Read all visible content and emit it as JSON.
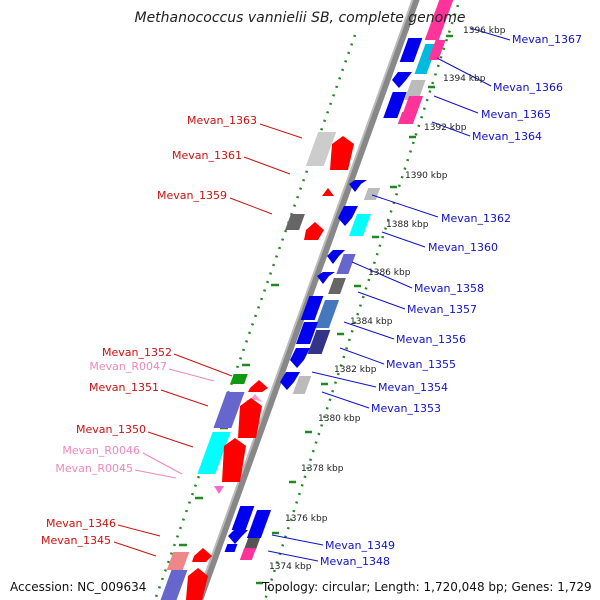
{
  "title": "Methanococcus vannielii SB, complete genome",
  "footer": {
    "accession": "Accession: NC_009634",
    "stats": "Topology: circular; Length: 1,720,048 bp; Genes: 1,729"
  },
  "colors": {
    "plus_strand_label": "#1111cc",
    "minus_strand_label": "#cc1111",
    "rna_label": "#ee88bb",
    "backbone": "#888888",
    "tick": "#228822"
  },
  "kbp_labels": [
    "1396 kbp",
    "1394 kbp",
    "1392 kbp",
    "1390 kbp",
    "1388 kbp",
    "1386 kbp",
    "1384 kbp",
    "1382 kbp",
    "1380 kbp",
    "1378 kbp",
    "1376 kbp",
    "1374 kbp"
  ],
  "genes_right": [
    "Mevan_1367",
    "Mevan_1366",
    "Mevan_1365",
    "Mevan_1364",
    "Mevan_1362",
    "Mevan_1360",
    "Mevan_1358",
    "Mevan_1357",
    "Mevan_1356",
    "Mevan_1355",
    "Mevan_1354",
    "Mevan_1353",
    "Mevan_1349",
    "Mevan_1348"
  ],
  "genes_left": [
    "Mevan_1363",
    "Mevan_1361",
    "Mevan_1359",
    "Mevan_1352",
    "Mevan_1351",
    "Mevan_1350",
    "Mevan_1346",
    "Mevan_1345"
  ],
  "rna_left": [
    "Mevan_R0047",
    "Mevan_R0046",
    "Mevan_R0045"
  ]
}
